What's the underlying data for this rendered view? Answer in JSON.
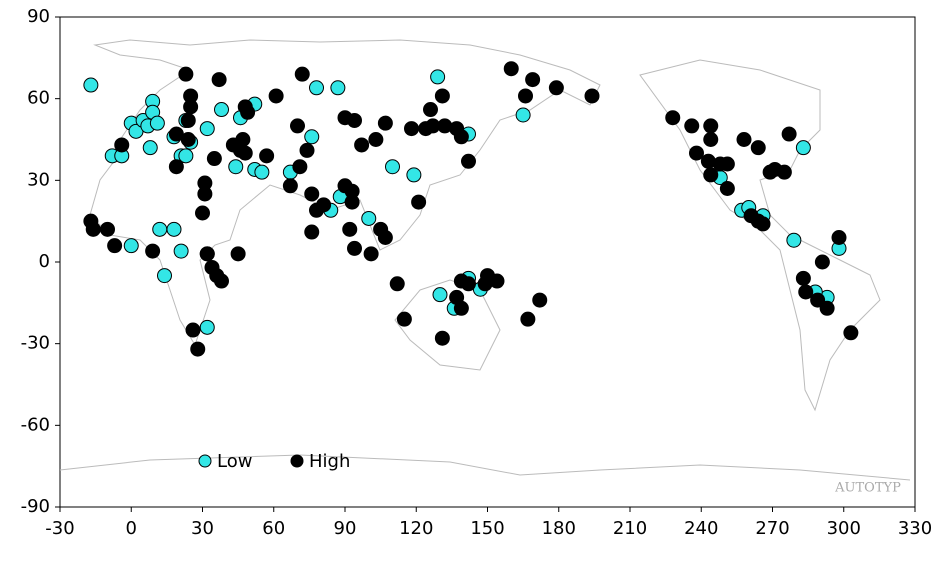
{
  "chart_data": {
    "type": "scatter",
    "watermark": "AUTOTYP",
    "xlim": [
      -30,
      330
    ],
    "ylim": [
      -90,
      90
    ],
    "xticks": [
      -30,
      0,
      30,
      60,
      90,
      120,
      150,
      180,
      210,
      240,
      270,
      300,
      330
    ],
    "yticks": [
      -90,
      -60,
      -30,
      0,
      30,
      60,
      90
    ],
    "legend": "lower left",
    "series": [
      {
        "name": "Low",
        "color": "#33e6e6",
        "x": [
          -17,
          -8,
          -4,
          0,
          2,
          5,
          9,
          9,
          7,
          11,
          8,
          18,
          23,
          25,
          21,
          23,
          32,
          38,
          46,
          52,
          44,
          52,
          55,
          67,
          76,
          78,
          87,
          84,
          88,
          100,
          110,
          119,
          129,
          142,
          165,
          12,
          18,
          21,
          0,
          14,
          32,
          32,
          130,
          142,
          147,
          136,
          248,
          257,
          260,
          266,
          279,
          283,
          298,
          293,
          288
        ],
        "values": [
          65,
          39,
          39,
          51,
          48,
          52,
          59,
          55,
          50,
          51,
          42,
          46,
          52,
          44,
          39,
          39,
          49,
          56,
          53,
          58,
          35,
          34,
          33,
          33,
          46,
          64,
          64,
          19,
          24,
          16,
          35,
          32,
          68,
          47,
          54,
          12,
          12,
          4,
          6,
          -5,
          3,
          -24,
          -12,
          -6,
          -10,
          -17,
          31,
          19,
          20,
          17,
          8,
          42,
          5,
          -13,
          -11
        ]
      },
      {
        "name": "High",
        "color": "#000000",
        "x": [
          -17,
          -16,
          -10,
          -7,
          -4,
          9,
          19,
          23,
          25,
          25,
          24,
          24,
          19,
          31,
          30,
          31,
          35,
          37,
          32,
          34,
          36,
          38,
          45,
          26,
          28,
          43,
          46,
          48,
          47,
          48,
          49,
          57,
          61,
          67,
          71,
          70,
          72,
          74,
          76,
          78,
          76,
          81,
          90,
          90,
          93,
          94,
          93,
          92,
          94,
          97,
          103,
          107,
          101,
          105,
          107,
          112,
          118,
          121,
          124,
          127,
          126,
          131,
          132,
          137,
          139,
          142,
          115,
          131,
          139,
          142,
          149,
          137,
          139,
          150,
          154,
          160,
          166,
          169,
          179,
          194,
          172,
          167,
          228,
          236,
          244,
          244,
          238,
          243,
          244,
          248,
          251,
          251,
          258,
          264,
          269,
          271,
          275,
          277,
          261,
          264,
          266,
          283,
          284,
          289,
          293,
          291,
          298,
          303
        ],
        "values": [
          15,
          12,
          12,
          6,
          43,
          4,
          35,
          69,
          61,
          57,
          52,
          45,
          47,
          25,
          18,
          29,
          38,
          67,
          3,
          -2,
          -5,
          -7,
          3,
          -25,
          -32,
          43,
          41,
          40,
          45,
          57,
          55,
          39,
          61,
          28,
          35,
          50,
          69,
          41,
          25,
          19,
          11,
          21,
          28,
          53,
          26,
          52,
          22,
          12,
          5,
          43,
          45,
          51,
          3,
          12,
          9,
          -8,
          49,
          22,
          49,
          50,
          56,
          61,
          50,
          49,
          46,
          37,
          -21,
          -28,
          -7,
          -8,
          -8,
          -13,
          -17,
          -5,
          -7,
          71,
          61,
          67,
          64,
          61,
          -14,
          -21,
          53,
          50,
          50,
          45,
          40,
          37,
          32,
          36,
          36,
          27,
          45,
          42,
          33,
          34,
          33,
          47,
          17,
          15,
          14,
          -6,
          -11,
          -14,
          -17,
          0,
          9,
          -26
        ]
      }
    ]
  }
}
